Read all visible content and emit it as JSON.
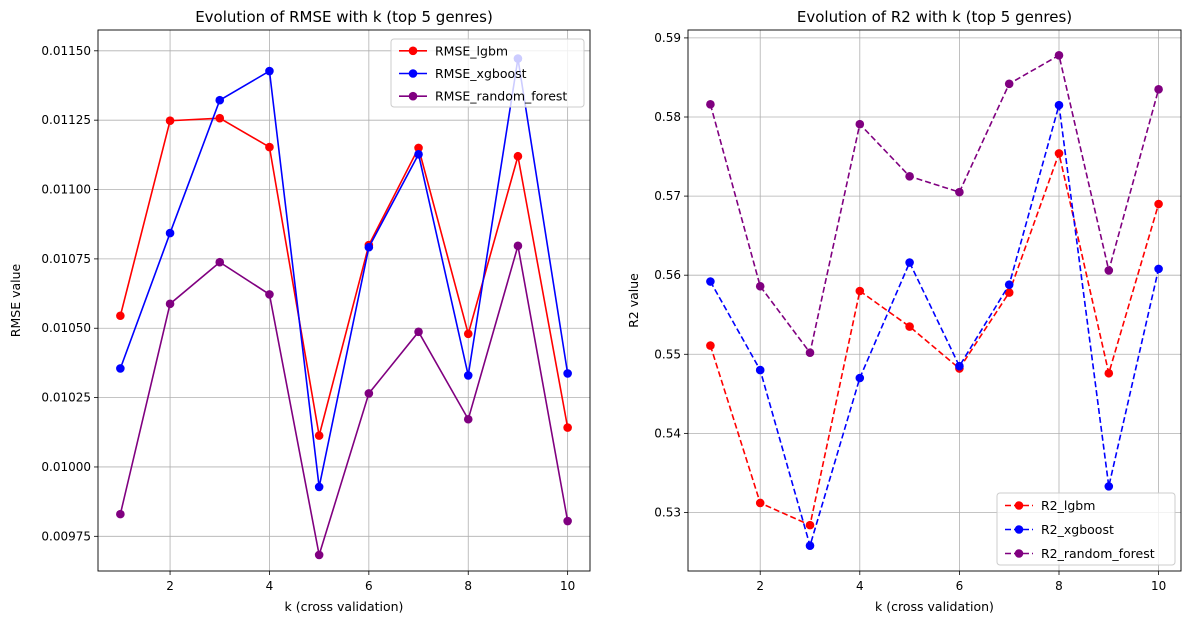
{
  "chart_data": [
    {
      "type": "line",
      "title": "Evolution of RMSE with k (top 5 genres)",
      "xlabel": "k (cross validation)",
      "ylabel": "RMSE value",
      "x": [
        1,
        2,
        3,
        4,
        5,
        6,
        7,
        8,
        9,
        10
      ],
      "xticks": [
        "2",
        "4",
        "6",
        "8",
        "10"
      ],
      "yticks": [
        "0.00975",
        "0.01000",
        "0.01025",
        "0.01050",
        "0.01075",
        "0.01100",
        "0.01125",
        "0.01150"
      ],
      "xlim": [
        0.55,
        10.45
      ],
      "ylim": [
        0.009625,
        0.011575
      ],
      "grid": true,
      "legend": "top-right",
      "series": [
        {
          "name": "RMSE_lgbm",
          "color": "#ff0000",
          "linestyle": "solid",
          "marker": "circle",
          "values": [
            0.010545,
            0.011248,
            0.011257,
            0.011153,
            0.010113,
            0.0108,
            0.01115,
            0.01048,
            0.01112,
            0.010142
          ]
        },
        {
          "name": "RMSE_xgboost",
          "color": "#0000ff",
          "linestyle": "solid",
          "marker": "circle",
          "values": [
            0.010355,
            0.010843,
            0.011322,
            0.011427,
            0.009928,
            0.010792,
            0.011127,
            0.01033,
            0.011472,
            0.010337
          ]
        },
        {
          "name": "RMSE_random_forest",
          "color": "#800080",
          "linestyle": "solid",
          "marker": "circle",
          "values": [
            0.00983,
            0.010588,
            0.010738,
            0.010622,
            0.009683,
            0.010265,
            0.010487,
            0.010172,
            0.010797,
            0.009805
          ]
        }
      ]
    },
    {
      "type": "line",
      "title": "Evolution of R2 with k (top 5 genres)",
      "xlabel": "k (cross validation)",
      "ylabel": "R2 value",
      "x": [
        1,
        2,
        3,
        4,
        5,
        6,
        7,
        8,
        9,
        10
      ],
      "xticks": [
        "2",
        "4",
        "6",
        "8",
        "10"
      ],
      "yticks": [
        "0.53",
        "0.54",
        "0.55",
        "0.56",
        "0.57",
        "0.58",
        "0.59"
      ],
      "xlim": [
        0.55,
        10.45
      ],
      "ylim": [
        0.5226,
        0.591
      ],
      "grid": true,
      "legend": "bottom-right",
      "series": [
        {
          "name": "R2_lgbm",
          "color": "#ff0000",
          "linestyle": "dashed",
          "marker": "circle",
          "values": [
            0.5511,
            0.5312,
            0.5284,
            0.558,
            0.5535,
            0.5482,
            0.5578,
            0.5754,
            0.5476,
            0.569
          ]
        },
        {
          "name": "R2_xgboost",
          "color": "#0000ff",
          "linestyle": "dashed",
          "marker": "circle",
          "values": [
            0.5592,
            0.548,
            0.5258,
            0.547,
            0.5616,
            0.5485,
            0.5588,
            0.5815,
            0.5333,
            0.5608
          ]
        },
        {
          "name": "R2_random_forest",
          "color": "#800080",
          "linestyle": "dashed",
          "marker": "circle",
          "values": [
            0.5816,
            0.5586,
            0.5502,
            0.5791,
            0.5725,
            0.5705,
            0.5842,
            0.5878,
            0.5606,
            0.5835
          ]
        }
      ]
    }
  ]
}
